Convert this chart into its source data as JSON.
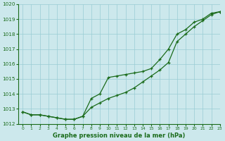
{
  "x": [
    0,
    1,
    2,
    3,
    4,
    5,
    6,
    7,
    8,
    9,
    10,
    11,
    12,
    13,
    14,
    15,
    16,
    17,
    18,
    19,
    20,
    21,
    22,
    23
  ],
  "line1": [
    1012.8,
    1012.6,
    1012.6,
    1012.5,
    1012.4,
    1012.3,
    1012.3,
    1012.5,
    1013.7,
    1014.0,
    1015.1,
    1015.2,
    1015.3,
    1015.4,
    1015.5,
    1015.7,
    1016.3,
    1017.0,
    1018.0,
    1018.3,
    1018.8,
    1019.0,
    1019.4,
    1019.5
  ],
  "line2": [
    1012.8,
    1012.6,
    1012.6,
    1012.5,
    1012.4,
    1012.3,
    1012.3,
    1012.5,
    1013.1,
    1013.4,
    1013.7,
    1013.9,
    1014.1,
    1014.4,
    1014.8,
    1015.2,
    1015.6,
    1016.1,
    1017.5,
    1018.0,
    1018.5,
    1018.9,
    1019.3,
    1019.5
  ],
  "line_color": "#1a6b1a",
  "background_color": "#cce8ec",
  "grid_color": "#99ccd4",
  "xlabel": "Graphe pression niveau de la mer (hPa)",
  "ylim": [
    1012,
    1020
  ],
  "xlim": [
    -0.5,
    23
  ],
  "yticks": [
    1012,
    1013,
    1014,
    1015,
    1016,
    1017,
    1018,
    1019,
    1020
  ],
  "xticks": [
    0,
    1,
    2,
    3,
    4,
    5,
    6,
    7,
    8,
    9,
    10,
    11,
    12,
    13,
    14,
    15,
    16,
    17,
    18,
    19,
    20,
    21,
    22,
    23
  ]
}
